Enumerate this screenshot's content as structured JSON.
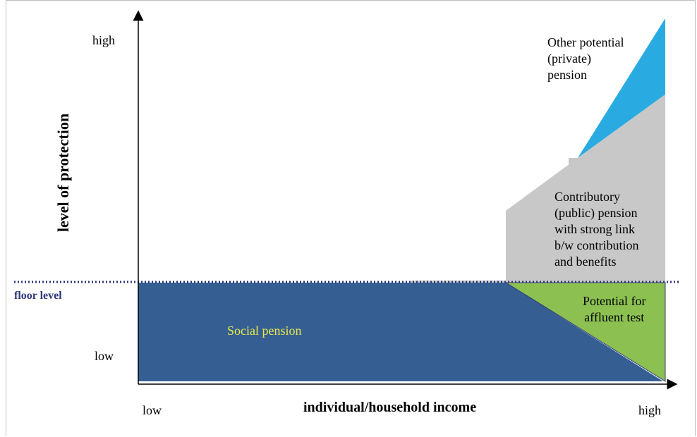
{
  "diagram": {
    "y_axis": {
      "label": "level of protection",
      "high_label": "high",
      "low_label": "low"
    },
    "x_axis": {
      "label": "individual/household income",
      "low_label": "low",
      "high_label": "high"
    },
    "floor": {
      "label": "floor level"
    },
    "regions": {
      "social_pension": {
        "label": "Social pension",
        "color": "#355f92",
        "text_color": "#e8e84a"
      },
      "affluent_test": {
        "lines": [
          "Potential for",
          "affluent test"
        ],
        "color": "#8cc152"
      },
      "contributory": {
        "lines": [
          "Contributory",
          "(public) pension",
          "with strong link",
          "b/w contribution",
          "and benefits"
        ],
        "color": "#c8c8c8"
      },
      "private": {
        "lines": [
          "Other potential",
          "(private)",
          "pension"
        ],
        "color": "#29abe2"
      }
    },
    "colors": {
      "axis": "#000000",
      "floor_line": "#2f3678"
    }
  }
}
